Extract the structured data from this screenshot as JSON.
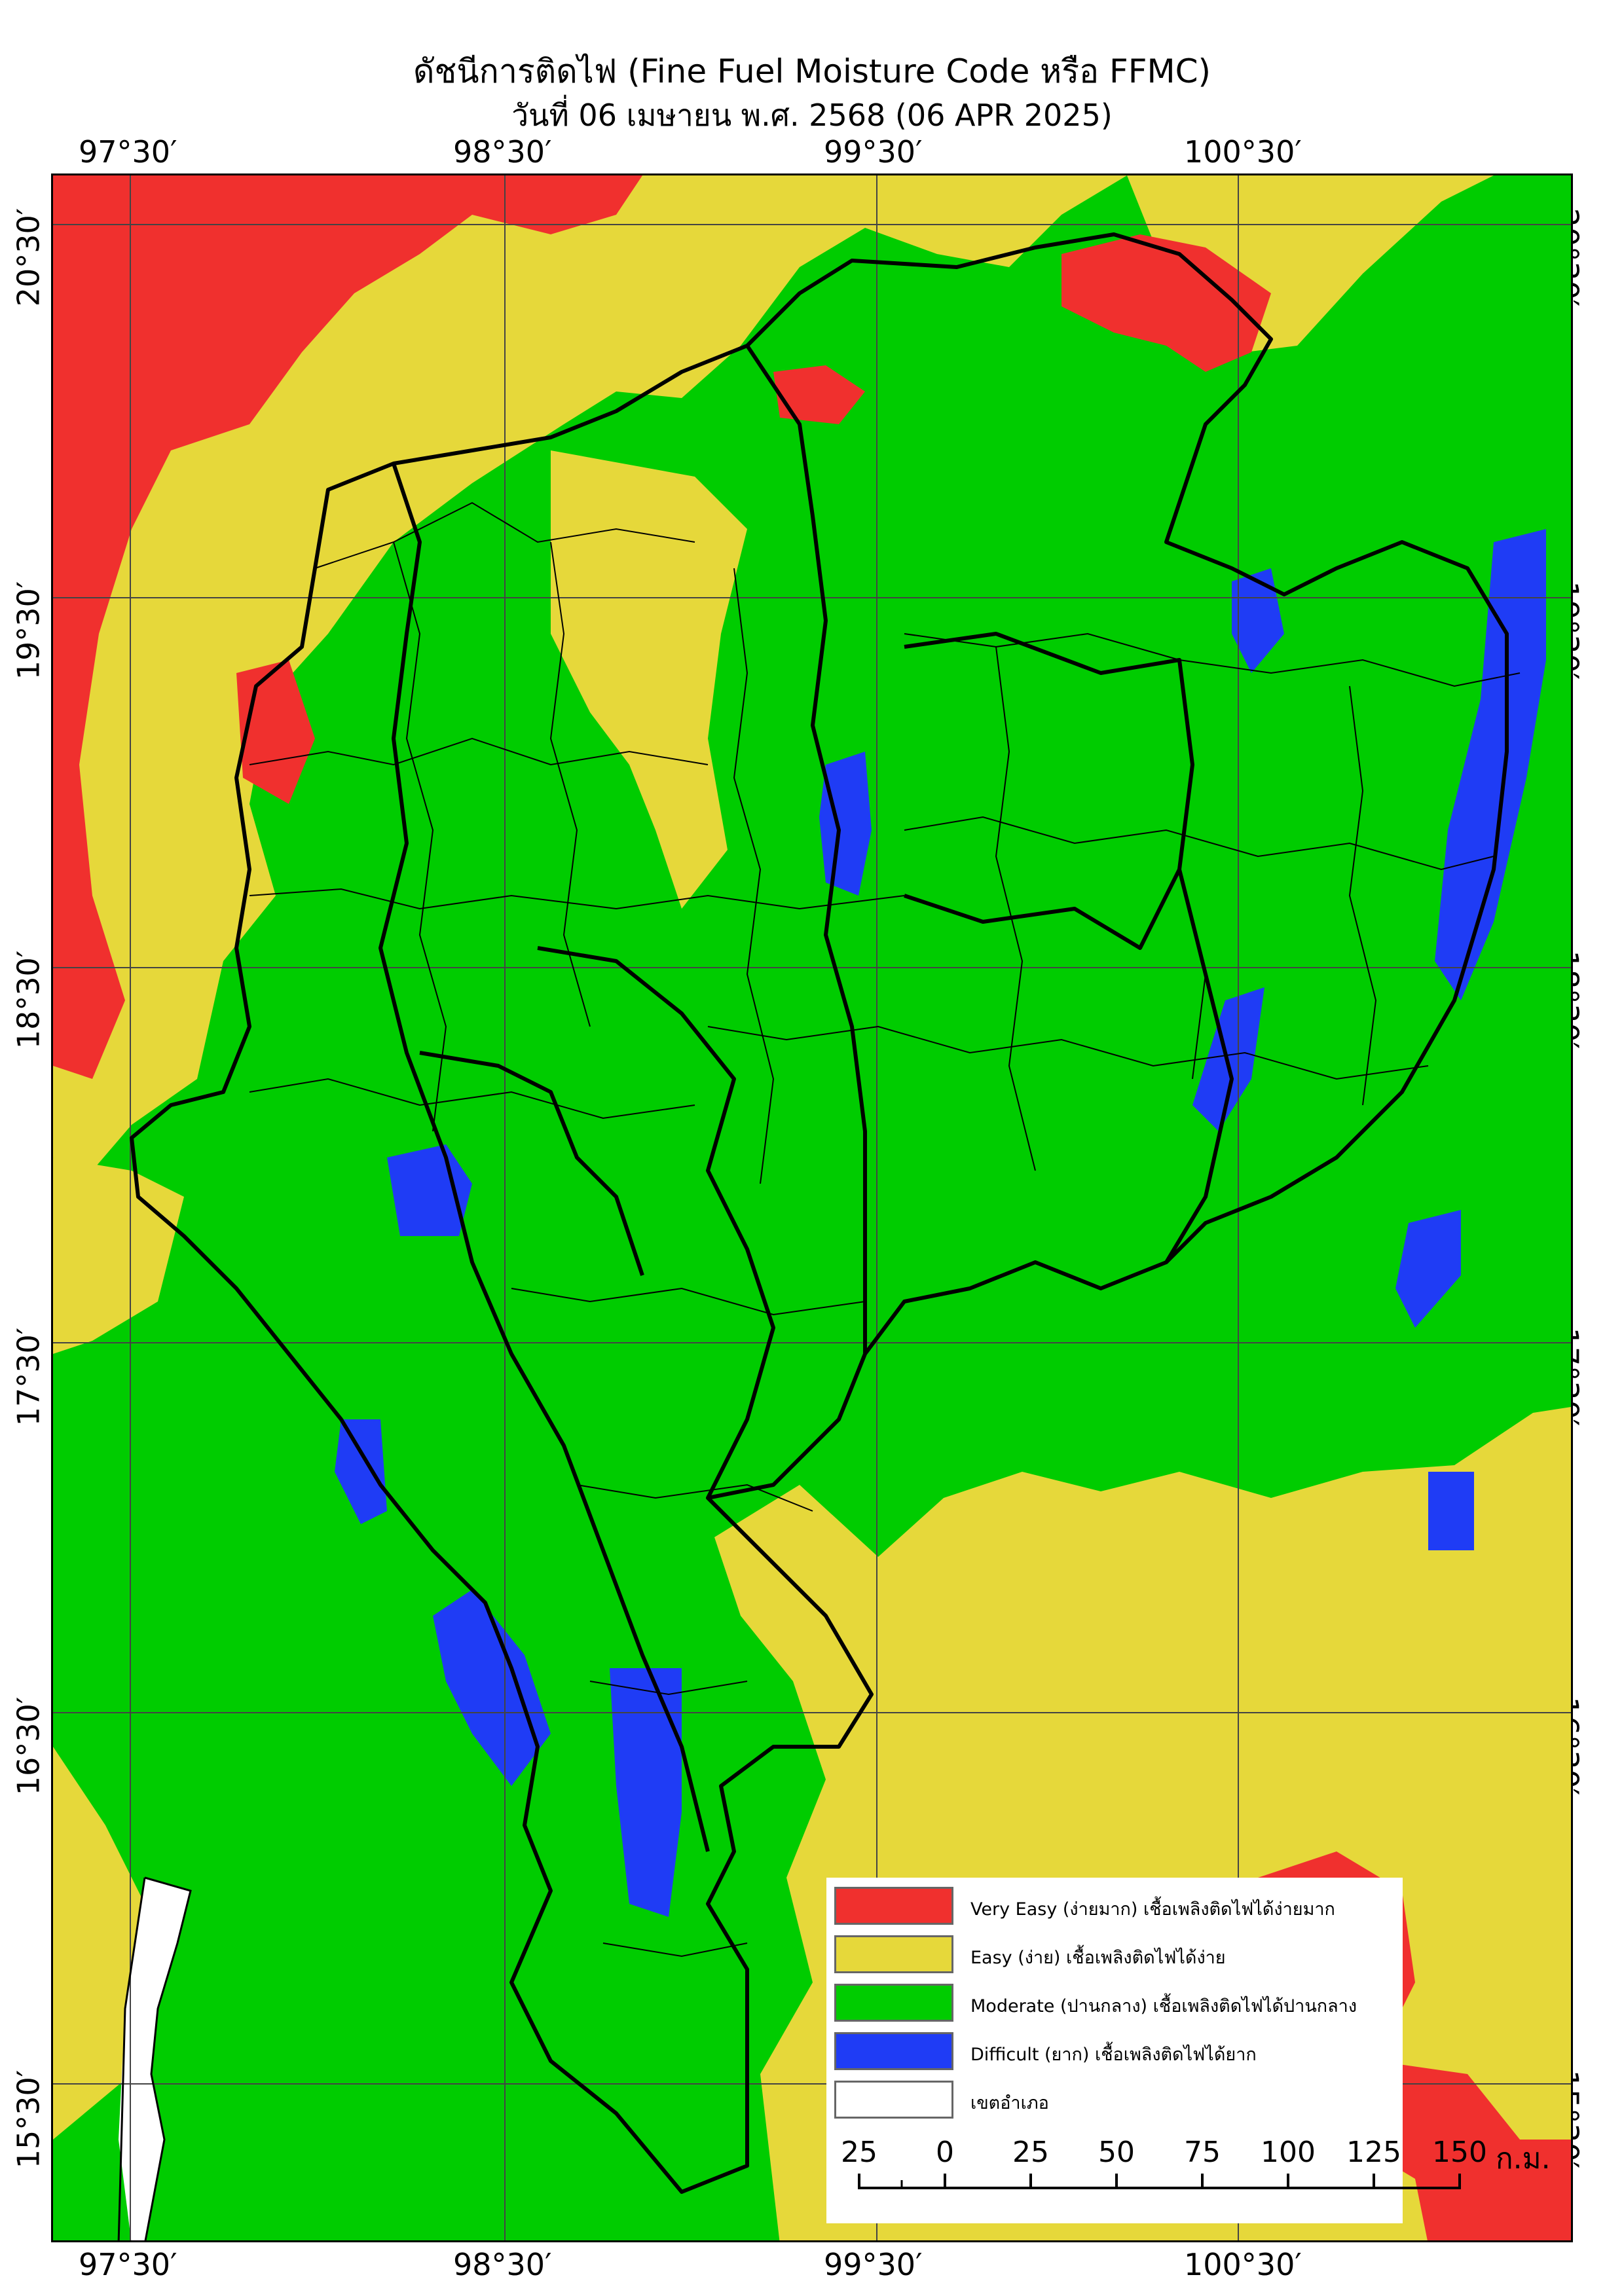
{
  "title": {
    "line1": "ดัชนีการติดไฟ (Fine Fuel Moisture Code หรือ FFMC)",
    "line2": "วันที่ 06 เมษายน พ.ศ. 2568 (06 APR 2025)"
  },
  "graticule": {
    "longitudes": [
      {
        "label": "97°30′",
        "lon": 97.5
      },
      {
        "label": "98°30′",
        "lon": 98.5
      },
      {
        "label": "99°30′",
        "lon": 99.5
      },
      {
        "label": "100°30′",
        "lon": 100.5
      }
    ],
    "latitudes": [
      {
        "label": "20°30′",
        "lat": 20.5
      },
      {
        "label": "19°30′",
        "lat": 19.5
      },
      {
        "label": "18°30′",
        "lat": 18.5
      },
      {
        "label": "17°30′",
        "lat": 17.5
      },
      {
        "label": "16°30′",
        "lat": 16.5
      },
      {
        "label": "15°30′",
        "lat": 15.5
      }
    ]
  },
  "legend": {
    "items": [
      {
        "label": "Very Easy (ง่ายมาก) เชื้อเพลิงติดไฟได้ง่ายมาก",
        "color": "#f0302e"
      },
      {
        "label": "Easy (ง่าย) เชื้อเพลิงติดไฟได้ง่าย",
        "color": "#e6d83a"
      },
      {
        "label": "Moderate (ปานกลาง) เชื้อเพลิงติดไฟได้ปานกลาง",
        "color": "#00cc00"
      },
      {
        "label": "Difficult (ยาก) เชื้อเพลิงติดไฟได้ยาก",
        "color": "#1f3cf5"
      },
      {
        "label": "เขตอำเภอ",
        "color": "#ffffff"
      }
    ]
  },
  "scale_bar": {
    "ticks": [
      "25",
      "0",
      "25",
      "50",
      "75",
      "100",
      "125",
      "150"
    ],
    "unit": "ก.ม."
  },
  "colors": {
    "very_easy": "#f0302e",
    "easy": "#e6d83a",
    "moderate": "#00cc00",
    "difficult": "#1f3cf5",
    "boundary": "#000000"
  }
}
